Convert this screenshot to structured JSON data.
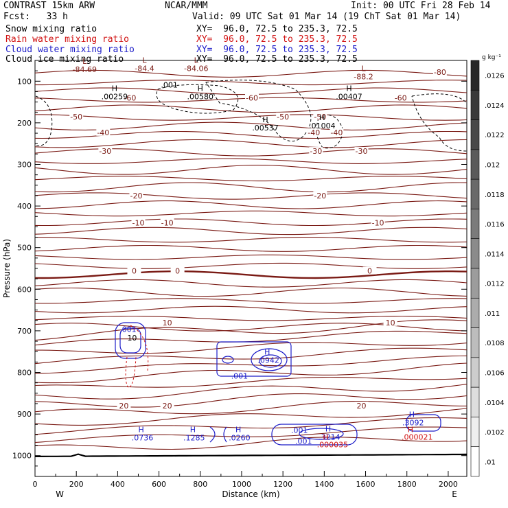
{
  "header": {
    "model": "CONTRAST 15km ARW",
    "org": "NCAR/MMM",
    "init": "Init: 00 UTC Fri 28 Feb 14",
    "fcst": "Fcst:   33 h",
    "valid": "Valid: 09 UTC Sat 01 Mar 14 (19 ChT Sat 01 Mar 14)",
    "fields": [
      {
        "label": "Snow mixing ratio",
        "xy": "XY=  96.0, 72.5 to 235.3, 72.5",
        "color": "#000000"
      },
      {
        "label": "Rain water mixing ratio",
        "xy": "XY=  96.0, 72.5 to 235.3, 72.5",
        "color": "#d01010"
      },
      {
        "label": "Cloud water mixing ratio",
        "xy": "XY=  96.0, 72.5 to 235.3, 72.5",
        "color": "#1c1cc8"
      },
      {
        "label": "Cloud ice mixing ratio",
        "xy": "XY=  96.0, 72.5 to 235.3, 72.5",
        "color": "#000000"
      }
    ]
  },
  "chart_data": {
    "type": "contour",
    "xlabel": "Distance (km)",
    "ylabel": "Pressure (hPa)",
    "xlim": [
      0,
      2090
    ],
    "ylim": [
      1050,
      50
    ],
    "x_ticks": [
      0,
      200,
      400,
      600,
      800,
      1000,
      1200,
      1400,
      1600,
      1800,
      2000
    ],
    "y_ticks": [
      100,
      200,
      300,
      400,
      500,
      600,
      700,
      800,
      900,
      1000
    ],
    "x_ends": {
      "left": "W",
      "right": "E"
    },
    "temperature_contours": {
      "color": "#7a1a14",
      "levels_labeled": [
        {
          "value": "-80",
          "pressure": 78,
          "label_x": [
            1960
          ]
        },
        {
          "value": "-60",
          "pressure": 140,
          "label_x": [
            460,
            1050,
            1770
          ]
        },
        {
          "value": "-50",
          "pressure": 185,
          "label_x": [
            200,
            1200,
            1380
          ]
        },
        {
          "value": "-40",
          "pressure": 223,
          "label_x": [
            330,
            1350,
            1460
          ]
        },
        {
          "value": "-30",
          "pressure": 268,
          "label_x": [
            340,
            1360,
            1580
          ]
        },
        {
          "value": "-20",
          "pressure": 375,
          "label_x": [
            490,
            1380
          ]
        },
        {
          "value": "-10",
          "pressure": 440,
          "label_x": [
            500,
            640,
            1660
          ]
        },
        {
          "value": "0",
          "pressure": 556,
          "label_x": [
            480,
            690,
            1620
          ]
        },
        {
          "value": "10",
          "pressure": 680,
          "label_x": [
            640,
            1720
          ]
        },
        {
          "value": "20",
          "pressure": 880,
          "label_x": [
            430,
            640,
            1580
          ]
        }
      ]
    },
    "upper_annotations": [
      {
        "mark": "L",
        "value": "-84.69",
        "x": 240,
        "p": 75
      },
      {
        "mark": "L",
        "value": "-84.4",
        "x": 530,
        "p": 72
      },
      {
        "mark": "L",
        "value": "-84.06",
        "x": 780,
        "p": 72
      },
      {
        "mark": "L",
        "value": "-88.2",
        "x": 1590,
        "p": 92
      },
      {
        "mark": "H",
        "value": ".00259",
        "x": 385,
        "p": 140
      },
      {
        "mark": "H",
        "value": ".00580",
        "x": 800,
        "p": 140
      },
      {
        "mark": "H",
        "value": ".00537",
        "x": 1115,
        "p": 215
      },
      {
        "mark": "H",
        "value": ".01004",
        "x": 1390,
        "p": 210
      },
      {
        "mark": "H",
        "value": ".00407",
        "x": 1520,
        "p": 140
      },
      {
        "mark": "",
        "value": ".001",
        "x": 650,
        "p": 112
      }
    ],
    "cloud_water_highs": [
      {
        "value": ".0736",
        "x": 520,
        "p": 962
      },
      {
        "value": ".1285",
        "x": 770,
        "p": 962
      },
      {
        "value": ".0260",
        "x": 990,
        "p": 962
      },
      {
        "value": ".3214",
        "x": 1425,
        "p": 960
      },
      {
        "value": ".3092",
        "x": 1830,
        "p": 925
      },
      {
        "value": ".0942",
        "x": 1130,
        "p": 775
      }
    ],
    "cloud_water_labels": [
      {
        "value": ".001",
        "x": 450,
        "p": 703
      },
      {
        "value": ".001",
        "x": 990,
        "p": 815
      },
      {
        "value": ".001",
        "x": 1280,
        "p": 945
      },
      {
        "value": ".001",
        "x": 1300,
        "p": 972
      }
    ],
    "rain_highs": [
      {
        "value": ".000035",
        "x": 1440,
        "p": 978
      },
      {
        "value": ".000021",
        "x": 1850,
        "p": 960
      }
    ],
    "snow_labels": [
      {
        "value": "10",
        "x": 470,
        "p": 723
      }
    ],
    "colorbar": {
      "unit": "g kg⁻¹",
      "ticks": [
        ".0126",
        ".0124",
        ".0122",
        ".012",
        ".0118",
        ".0116",
        ".0114",
        ".0112",
        ".011",
        ".0108",
        ".0106",
        ".0104",
        ".0102",
        ".01"
      ]
    }
  }
}
